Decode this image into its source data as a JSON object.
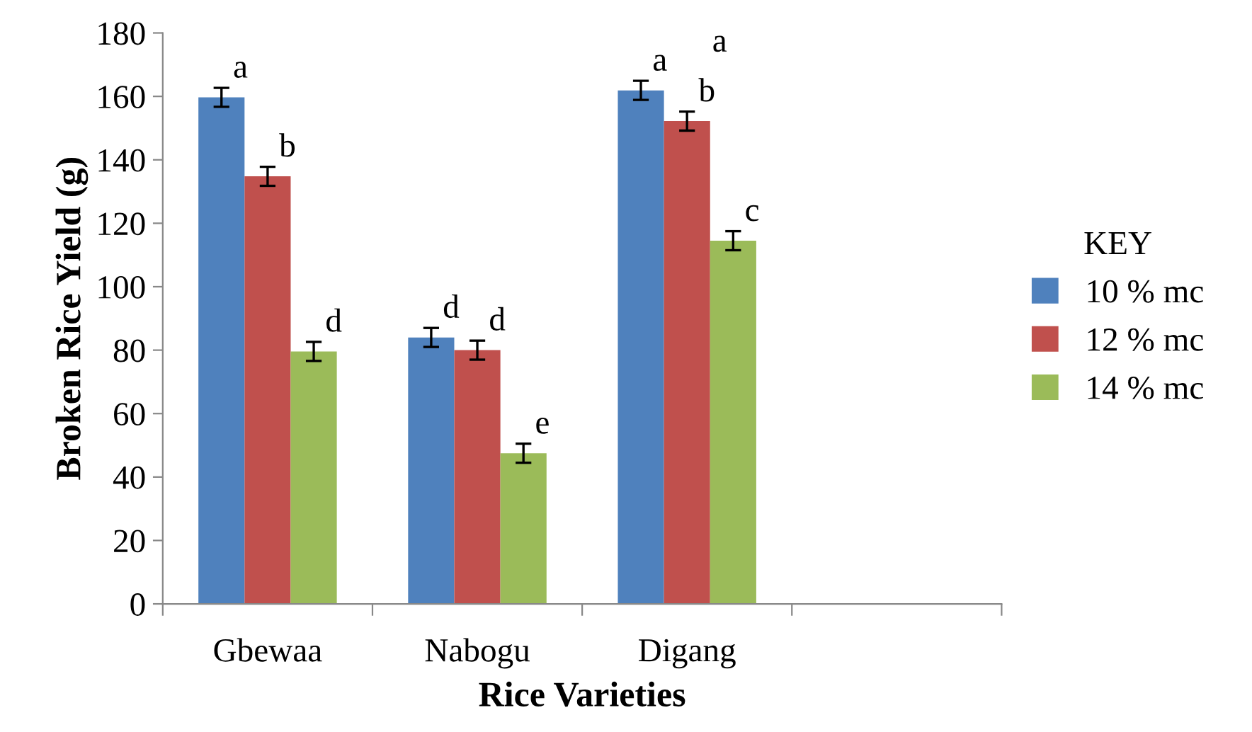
{
  "chart_data": {
    "type": "bar",
    "xlabel": "Rice Varieties",
    "ylabel": "Broken Rice Yield (g)",
    "legend_title": "KEY",
    "categories": [
      "Gbewaa",
      "Nabogu",
      "Digang",
      null
    ],
    "series": [
      {
        "name": "10 % mc",
        "color": "#4f81bd",
        "values": [
          159.7,
          84.0,
          161.9,
          null
        ],
        "errors": [
          3,
          3,
          3,
          null
        ],
        "value_labels": [
          "a",
          "d",
          "a",
          null
        ]
      },
      {
        "name": "12 % mc",
        "color": "#c0504d",
        "values": [
          134.8,
          80.0,
          152.2,
          null
        ],
        "errors": [
          3,
          3,
          3,
          null
        ],
        "value_labels": [
          "b",
          "d",
          "b",
          null
        ]
      },
      {
        "name": "14 % mc",
        "color": "#9bbb59",
        "values": [
          79.6,
          47.5,
          114.5,
          null
        ],
        "errors": [
          3,
          3,
          3,
          null
        ],
        "value_labels": [
          "d",
          "e",
          "c",
          null
        ]
      }
    ],
    "annotations": [
      "a"
    ],
    "ylim": [
      0,
      180
    ],
    "yticks": [
      0,
      20,
      40,
      60,
      80,
      100,
      120,
      140,
      160,
      180
    ],
    "grid": false,
    "legend": "right"
  }
}
